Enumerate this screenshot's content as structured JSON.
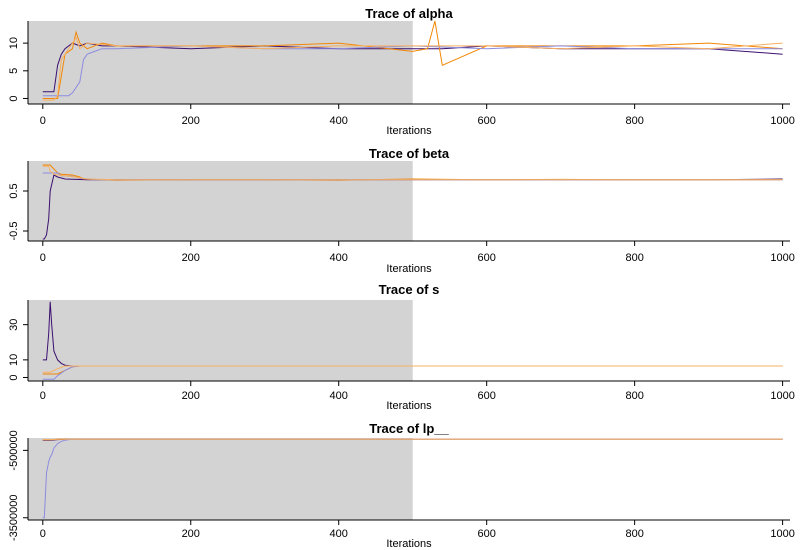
{
  "chart_data": [
    {
      "type": "line",
      "title": "Trace of  alpha",
      "xlabel": "Iterations",
      "ylabel": "",
      "xlim": [
        -20,
        1010
      ],
      "ylim": [
        -1,
        14
      ],
      "x_ticks": [
        0,
        200,
        400,
        600,
        800,
        1000
      ],
      "y_ticks": [
        0,
        5,
        10
      ],
      "warmup_iterations": 500,
      "chain_colors": [
        "#3b0f70",
        "#f28705",
        "#8c8ce0",
        "#f8b060"
      ],
      "chains": [
        {
          "iterations": [
            0,
            15,
            20,
            25,
            30,
            40,
            50,
            60,
            80,
            100,
            200,
            300,
            400,
            500,
            520,
            540,
            600,
            700,
            800,
            900,
            1000
          ],
          "values": [
            1.2,
            1.2,
            6,
            8,
            9,
            10,
            9.5,
            10,
            9.5,
            9.5,
            9,
            9.5,
            9,
            9,
            9,
            9,
            9.5,
            9,
            9,
            9,
            8
          ]
        },
        {
          "iterations": [
            0,
            20,
            30,
            40,
            45,
            50,
            60,
            80,
            100,
            200,
            300,
            400,
            500,
            520,
            530,
            540,
            600,
            700,
            800,
            900,
            1000
          ],
          "values": [
            0,
            0,
            8,
            9,
            12,
            10,
            9,
            10,
            9.5,
            9.5,
            9.5,
            10,
            8.5,
            9,
            14,
            6,
            9.5,
            9.5,
            9.5,
            10,
            9
          ]
        },
        {
          "iterations": [
            0,
            35,
            40,
            50,
            55,
            60,
            70,
            80,
            100,
            200,
            300,
            400,
            500,
            600,
            700,
            800,
            900,
            1000
          ],
          "values": [
            0.5,
            0.5,
            1,
            3,
            7,
            8,
            8.5,
            9,
            9,
            9.5,
            9,
            9,
            9.5,
            9,
            9.5,
            9,
            9,
            9
          ]
        },
        {
          "iterations": [
            0,
            15,
            20,
            25,
            40,
            45,
            50,
            60,
            100,
            200,
            300,
            400,
            500,
            600,
            700,
            800,
            900,
            1000
          ],
          "values": [
            -0.3,
            -0.3,
            0.5,
            7,
            10,
            11,
            9,
            10,
            9.5,
            9.5,
            9,
            9.5,
            9.5,
            9.5,
            9,
            9.5,
            9,
            10
          ]
        }
      ]
    },
    {
      "type": "line",
      "title": "Trace of  beta",
      "xlabel": "Iterations",
      "ylabel": "",
      "xlim": [
        -20,
        1010
      ],
      "ylim": [
        -0.75,
        1.25
      ],
      "x_ticks": [
        0,
        200,
        400,
        600,
        800,
        1000
      ],
      "y_ticks": [
        -0.5,
        0.5
      ],
      "warmup_iterations": 500,
      "chain_colors": [
        "#3b0f70",
        "#f28705",
        "#8c8ce0",
        "#f8b060"
      ],
      "chains": [
        {
          "iterations": [
            0,
            2,
            5,
            8,
            10,
            15,
            20,
            30,
            60,
            100,
            200,
            300,
            400,
            500,
            600,
            700,
            800,
            900,
            1000
          ],
          "values": [
            -0.7,
            -0.7,
            -0.6,
            -0.2,
            0.5,
            0.9,
            0.85,
            0.8,
            0.78,
            0.78,
            0.78,
            0.78,
            0.78,
            0.78,
            0.78,
            0.78,
            0.78,
            0.78,
            0.8
          ]
        },
        {
          "iterations": [
            0,
            10,
            15,
            20,
            25,
            40,
            50,
            55,
            80,
            100,
            200,
            300,
            400,
            500,
            600,
            700,
            800,
            900,
            1000
          ],
          "values": [
            1.15,
            1.15,
            1.05,
            0.95,
            0.92,
            0.9,
            0.85,
            0.8,
            0.78,
            0.77,
            0.78,
            0.78,
            0.77,
            0.8,
            0.78,
            0.79,
            0.78,
            0.78,
            0.78
          ]
        },
        {
          "iterations": [
            0,
            20,
            25,
            40,
            50,
            60,
            80,
            100,
            200,
            300,
            400,
            500,
            600,
            700,
            800,
            900,
            1000
          ],
          "values": [
            0.95,
            0.95,
            0.88,
            0.87,
            0.82,
            0.8,
            0.78,
            0.78,
            0.78,
            0.78,
            0.78,
            0.78,
            0.78,
            0.78,
            0.78,
            0.78,
            0.78
          ]
        },
        {
          "iterations": [
            0,
            8,
            10,
            15,
            20,
            40,
            60,
            100,
            200,
            300,
            400,
            500,
            600,
            700,
            800,
            900,
            1000
          ],
          "values": [
            1.12,
            1.12,
            1.0,
            0.92,
            0.9,
            0.86,
            0.8,
            0.78,
            0.78,
            0.78,
            0.78,
            0.78,
            0.78,
            0.78,
            0.78,
            0.78,
            0.78
          ]
        }
      ]
    },
    {
      "type": "line",
      "title": "Trace of  s",
      "xlabel": "Iterations",
      "ylabel": "",
      "xlim": [
        -20,
        1010
      ],
      "ylim": [
        -2,
        44
      ],
      "x_ticks": [
        0,
        200,
        400,
        600,
        800,
        1000
      ],
      "y_ticks": [
        0,
        10,
        30
      ],
      "warmup_iterations": 500,
      "chain_colors": [
        "#3b0f70",
        "#f28705",
        "#8c8ce0",
        "#f8b060"
      ],
      "chains": [
        {
          "iterations": [
            0,
            5,
            8,
            10,
            12,
            15,
            20,
            25,
            30,
            40,
            50,
            100,
            200,
            300,
            400,
            500,
            600,
            700,
            800,
            900,
            1000
          ],
          "values": [
            10,
            10,
            25,
            43,
            30,
            15,
            10,
            8,
            7,
            6.5,
            6.5,
            6.5,
            6.5,
            6.5,
            6.5,
            6.5,
            6.5,
            6.5,
            6.5,
            6.5,
            6.5
          ]
        },
        {
          "iterations": [
            0,
            20,
            30,
            40,
            50,
            100,
            200,
            300,
            400,
            500,
            600,
            700,
            800,
            900,
            1000
          ],
          "values": [
            2,
            2,
            4,
            6,
            6.5,
            6.5,
            6.5,
            6.5,
            6.5,
            6.5,
            6.5,
            6.5,
            6.5,
            6.5,
            6.5
          ]
        },
        {
          "iterations": [
            0,
            15,
            20,
            30,
            40,
            50,
            100,
            200,
            300,
            400,
            500,
            600,
            700,
            800,
            900,
            1000
          ],
          "values": [
            -1,
            -1,
            1,
            4,
            6,
            6.5,
            6.5,
            6.5,
            6.5,
            6.5,
            6.5,
            6.5,
            6.5,
            6.5,
            6.5,
            6.5
          ]
        },
        {
          "iterations": [
            0,
            10,
            20,
            30,
            40,
            100,
            200,
            300,
            400,
            500,
            600,
            700,
            800,
            900,
            1000
          ],
          "values": [
            3,
            3,
            5,
            6.5,
            6.5,
            6.5,
            6.5,
            6.5,
            6.5,
            6.5,
            6.5,
            6.5,
            6.5,
            6.5,
            6.5
          ]
        }
      ]
    },
    {
      "type": "line",
      "title": "Trace of  lp__",
      "xlabel": "Iterations",
      "ylabel": "",
      "xlim": [
        -20,
        1010
      ],
      "ylim": [
        -3600000,
        50000
      ],
      "x_ticks": [
        0,
        200,
        400,
        600,
        800,
        1000
      ],
      "y_ticks": [
        -3500000,
        -500000
      ],
      "y_tick_labels": [
        "-3500000",
        "-500000"
      ],
      "warmup_iterations": 500,
      "chain_colors": [
        "#3b0f70",
        "#f28705",
        "#8c8ce0",
        "#f8b060"
      ],
      "chains": [
        {
          "iterations": [
            0,
            10,
            20,
            30,
            40,
            100,
            200,
            300,
            400,
            500,
            600,
            700,
            800,
            900,
            1000
          ],
          "values": [
            -50000,
            -50000,
            -20000,
            -5000,
            -300,
            -300,
            -300,
            -300,
            -300,
            -300,
            -300,
            -300,
            -300,
            -300,
            -300
          ]
        },
        {
          "iterations": [
            0,
            10,
            20,
            40,
            100,
            200,
            300,
            400,
            500,
            600,
            700,
            800,
            900,
            1000
          ],
          "values": [
            -30000,
            -30000,
            -10000,
            -300,
            -300,
            -300,
            -300,
            -300,
            -300,
            -300,
            -300,
            -300,
            -300,
            -300
          ]
        },
        {
          "iterations": [
            0,
            2,
            5,
            8,
            10,
            12,
            15,
            20,
            25,
            30,
            40,
            100,
            200,
            300,
            400,
            500,
            600,
            700,
            800,
            900,
            1000
          ],
          "values": [
            -3500000,
            -3500000,
            -1500000,
            -1000000,
            -800000,
            -700000,
            -400000,
            -200000,
            -100000,
            -50000,
            -300,
            -300,
            -300,
            -300,
            -300,
            -300,
            -300,
            -300,
            -300,
            -300,
            -300
          ]
        },
        {
          "iterations": [
            0,
            10,
            20,
            40,
            100,
            200,
            300,
            400,
            500,
            600,
            700,
            800,
            900,
            1000
          ],
          "values": [
            -20000,
            -20000,
            -5000,
            -300,
            -300,
            -300,
            -300,
            -300,
            -300,
            -300,
            -300,
            -300,
            -300,
            -300
          ]
        }
      ]
    }
  ]
}
